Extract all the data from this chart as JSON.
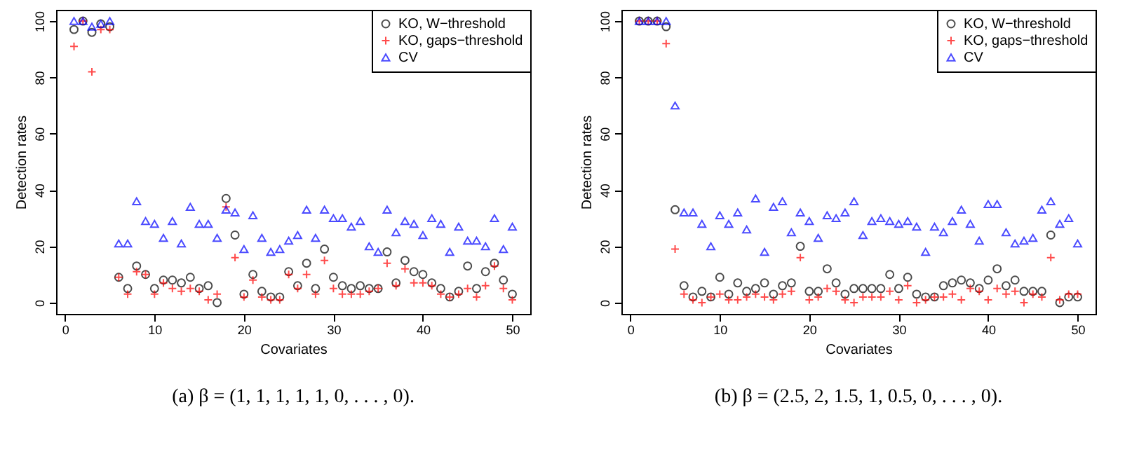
{
  "chart_data": [
    {
      "type": "scatter",
      "title": "(a) β = (1, 1, 1, 1, 1, 0, . . . , 0).",
      "xlabel": "Covariates",
      "ylabel": "Detection rates",
      "xlim": [
        -1,
        52
      ],
      "ylim": [
        -4,
        104
      ],
      "xticks": [
        0,
        10,
        20,
        30,
        40,
        50
      ],
      "yticks": [
        0,
        20,
        40,
        60,
        80,
        100
      ],
      "legend": "top right",
      "grid": false,
      "x": [
        1,
        2,
        3,
        4,
        5,
        6,
        7,
        8,
        9,
        10,
        11,
        12,
        13,
        14,
        15,
        16,
        17,
        18,
        19,
        20,
        21,
        22,
        23,
        24,
        25,
        26,
        27,
        28,
        29,
        30,
        31,
        32,
        33,
        34,
        35,
        36,
        37,
        38,
        39,
        40,
        41,
        42,
        43,
        44,
        45,
        46,
        47,
        48,
        49,
        50
      ],
      "series": [
        {
          "name": "KO, W−threshold",
          "color": "#000000",
          "marker": "circle",
          "values": [
            97,
            100,
            96,
            99,
            98,
            9,
            5,
            13,
            10,
            5,
            8,
            8,
            7,
            9,
            5,
            6,
            0,
            37,
            24,
            3,
            10,
            4,
            2,
            2,
            11,
            6,
            14,
            5,
            19,
            9,
            6,
            5,
            6,
            5,
            5,
            18,
            7,
            15,
            11,
            10,
            7,
            5,
            2,
            4,
            13,
            5,
            11,
            14,
            8,
            3
          ]
        },
        {
          "name": "KO, gaps−threshold",
          "color": "#ff0000",
          "marker": "cross",
          "values": [
            91,
            100,
            82,
            97,
            97,
            9,
            3,
            11,
            10,
            3,
            7,
            5,
            4,
            5,
            4,
            1,
            3,
            34,
            16,
            2,
            8,
            2,
            1,
            1,
            10,
            5,
            10,
            3,
            15,
            5,
            3,
            3,
            3,
            4,
            5,
            14,
            6,
            12,
            7,
            7,
            6,
            3,
            2,
            3,
            5,
            2,
            6,
            13,
            5,
            1
          ]
        },
        {
          "name": "CV",
          "color": "#0000ff",
          "marker": "triangle",
          "values": [
            100,
            100,
            98,
            99,
            100,
            21,
            21,
            36,
            29,
            28,
            23,
            29,
            21,
            34,
            28,
            28,
            23,
            33,
            32,
            19,
            31,
            23,
            18,
            19,
            22,
            24,
            33,
            23,
            33,
            30,
            30,
            27,
            29,
            20,
            18,
            33,
            25,
            29,
            28,
            24,
            30,
            28,
            18,
            27,
            22,
            22,
            20,
            30,
            19,
            27
          ]
        }
      ]
    },
    {
      "type": "scatter",
      "title": "(b) β = (2.5, 2, 1.5, 1, 0.5, 0, . . . , 0).",
      "xlabel": "Covariates",
      "ylabel": "Detection rates",
      "xlim": [
        -1,
        52
      ],
      "ylim": [
        -4,
        104
      ],
      "xticks": [
        0,
        10,
        20,
        30,
        40,
        50
      ],
      "yticks": [
        0,
        20,
        40,
        60,
        80,
        100
      ],
      "legend": "top right",
      "grid": false,
      "x": [
        1,
        2,
        3,
        4,
        5,
        6,
        7,
        8,
        9,
        10,
        11,
        12,
        13,
        14,
        15,
        16,
        17,
        18,
        19,
        20,
        21,
        22,
        23,
        24,
        25,
        26,
        27,
        28,
        29,
        30,
        31,
        32,
        33,
        34,
        35,
        36,
        37,
        38,
        39,
        40,
        41,
        42,
        43,
        44,
        45,
        46,
        47,
        48,
        49,
        50
      ],
      "series": [
        {
          "name": "KO, W−threshold",
          "color": "#000000",
          "marker": "circle",
          "values": [
            100,
            100,
            100,
            98,
            33,
            6,
            2,
            4,
            2,
            9,
            3,
            7,
            4,
            5,
            7,
            3,
            6,
            7,
            20,
            4,
            4,
            12,
            7,
            3,
            5,
            5,
            5,
            5,
            10,
            5,
            9,
            3,
            2,
            2,
            6,
            7,
            8,
            7,
            5,
            8,
            12,
            6,
            8,
            4,
            4,
            4,
            24,
            0,
            2,
            2
          ]
        },
        {
          "name": "KO, gaps−threshold",
          "color": "#ff0000",
          "marker": "cross",
          "values": [
            100,
            100,
            100,
            92,
            19,
            3,
            1,
            0,
            2,
            3,
            1,
            1,
            2,
            3,
            2,
            1,
            3,
            4,
            16,
            1,
            2,
            5,
            4,
            1,
            0,
            2,
            2,
            2,
            4,
            1,
            6,
            0,
            1,
            2,
            2,
            3,
            1,
            5,
            4,
            1,
            5,
            3,
            4,
            0,
            3,
            2,
            16,
            1,
            3,
            3
          ]
        },
        {
          "name": "CV",
          "color": "#0000ff",
          "marker": "triangle",
          "values": [
            100,
            100,
            100,
            100,
            70,
            32,
            32,
            28,
            20,
            31,
            28,
            32,
            26,
            37,
            18,
            34,
            36,
            25,
            32,
            29,
            23,
            31,
            30,
            32,
            36,
            24,
            29,
            30,
            29,
            28,
            29,
            27,
            18,
            27,
            25,
            29,
            33,
            28,
            22,
            35,
            35,
            25,
            21,
            22,
            23,
            33,
            36,
            28,
            30,
            21
          ]
        }
      ]
    }
  ]
}
